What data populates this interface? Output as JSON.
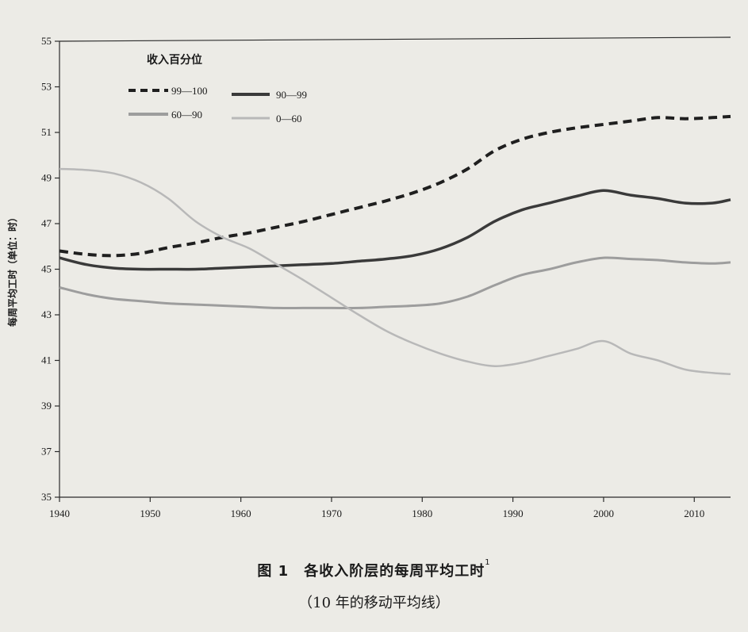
{
  "chart_data": {
    "type": "line",
    "ylabel": "每周平均工时（单位：时）",
    "xlim": [
      1940,
      2014
    ],
    "ylim": [
      35,
      55
    ],
    "x_ticks": [
      1940,
      1950,
      1960,
      1970,
      1980,
      1990,
      2000,
      2010
    ],
    "y_ticks": [
      35,
      37,
      39,
      41,
      43,
      45,
      47,
      49,
      51,
      53,
      55
    ],
    "legend_title": "收入百分位",
    "legend_position": "top-left",
    "grid": false,
    "series": [
      {
        "name": "99—100",
        "style": "dashed",
        "color": "#1f1f1f",
        "x": [
          1940,
          1943,
          1946,
          1949,
          1952,
          1955,
          1958,
          1961,
          1964,
          1967,
          1970,
          1973,
          1976,
          1979,
          1982,
          1985,
          1988,
          1991,
          1994,
          1997,
          2000,
          2003,
          2006,
          2009,
          2012,
          2014
        ],
        "y": [
          45.8,
          45.65,
          45.6,
          45.7,
          45.95,
          46.15,
          46.4,
          46.6,
          46.85,
          47.1,
          47.4,
          47.7,
          48.0,
          48.35,
          48.8,
          49.4,
          50.2,
          50.7,
          51.0,
          51.2,
          51.35,
          51.5,
          51.65,
          51.6,
          51.65,
          51.7
        ]
      },
      {
        "name": "90—99",
        "style": "solid",
        "color": "#3a3a3a",
        "x": [
          1940,
          1943,
          1946,
          1949,
          1952,
          1955,
          1958,
          1961,
          1964,
          1967,
          1970,
          1973,
          1976,
          1979,
          1982,
          1985,
          1988,
          1991,
          1994,
          1997,
          2000,
          2003,
          2006,
          2009,
          2012,
          2014
        ],
        "y": [
          45.5,
          45.2,
          45.05,
          45.0,
          45.0,
          45.0,
          45.05,
          45.1,
          45.15,
          45.2,
          45.25,
          45.35,
          45.45,
          45.6,
          45.9,
          46.4,
          47.1,
          47.6,
          47.9,
          48.2,
          48.45,
          48.25,
          48.1,
          47.9,
          47.9,
          48.05
        ]
      },
      {
        "name": "60—90",
        "style": "solid",
        "color": "#9d9d9d",
        "x": [
          1940,
          1943,
          1946,
          1949,
          1952,
          1955,
          1958,
          1961,
          1964,
          1967,
          1970,
          1973,
          1976,
          1979,
          1982,
          1985,
          1988,
          1991,
          1994,
          1997,
          2000,
          2003,
          2006,
          2009,
          2012,
          2014
        ],
        "y": [
          44.2,
          43.9,
          43.7,
          43.6,
          43.5,
          43.45,
          43.4,
          43.35,
          43.3,
          43.3,
          43.3,
          43.3,
          43.35,
          43.4,
          43.5,
          43.8,
          44.3,
          44.75,
          45.0,
          45.3,
          45.5,
          45.45,
          45.4,
          45.3,
          45.25,
          45.3
        ]
      },
      {
        "name": "0—60",
        "style": "solid",
        "color": "#b8b8b8",
        "x": [
          1940,
          1943,
          1946,
          1949,
          1952,
          1955,
          1958,
          1961,
          1964,
          1967,
          1970,
          1973,
          1976,
          1979,
          1982,
          1985,
          1988,
          1991,
          1994,
          1997,
          2000,
          2003,
          2006,
          2009,
          2012,
          2014
        ],
        "y": [
          49.4,
          49.35,
          49.2,
          48.8,
          48.1,
          47.1,
          46.4,
          45.9,
          45.2,
          44.5,
          43.75,
          43.0,
          42.3,
          41.75,
          41.3,
          40.95,
          40.75,
          40.9,
          41.2,
          41.5,
          41.85,
          41.3,
          41.0,
          40.6,
          40.45,
          40.4
        ]
      }
    ]
  },
  "caption": {
    "title": "图 1　各收入阶层的每周平均工时",
    "title_note": "1",
    "subtitle": "（10 年的移动平均线）"
  }
}
